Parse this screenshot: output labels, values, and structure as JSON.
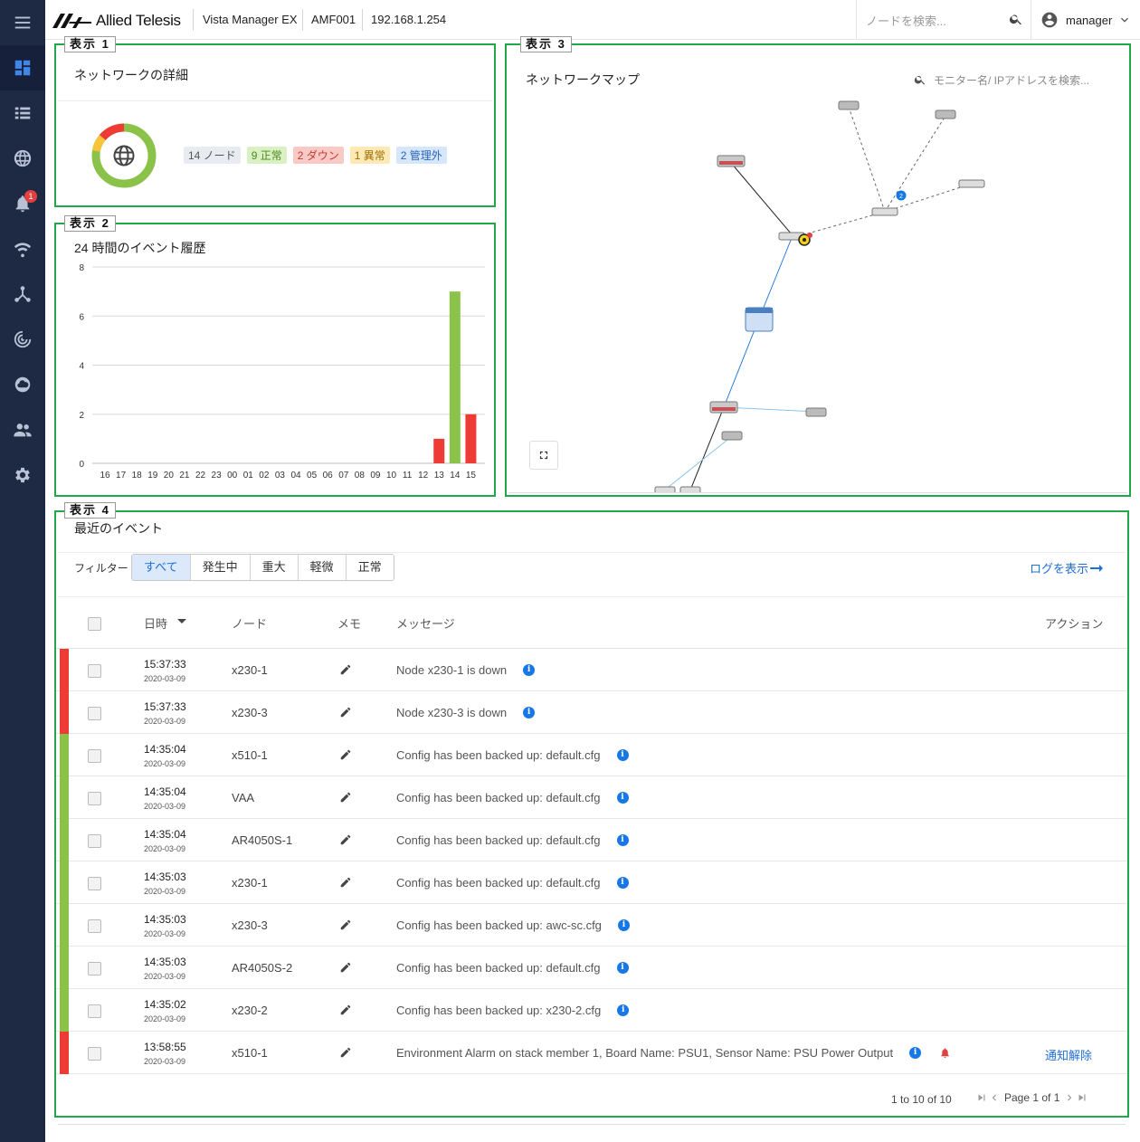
{
  "header": {
    "brand": "Allied Telesis",
    "product": "Vista Manager EX",
    "device": "AMF001",
    "ip": "192.168.1.254",
    "search_placeholder": "ノードを検索...",
    "user": "manager"
  },
  "sidebar": {
    "items": [
      {
        "icon": "menu-icon"
      },
      {
        "icon": "dashboard-icon",
        "active": true
      },
      {
        "icon": "list-icon"
      },
      {
        "icon": "globe-icon"
      },
      {
        "icon": "bell-icon",
        "badge": "1"
      },
      {
        "icon": "wifi-icon"
      },
      {
        "icon": "topology-icon"
      },
      {
        "icon": "radar-icon"
      },
      {
        "icon": "cloud-icon"
      },
      {
        "icon": "users-icon"
      },
      {
        "icon": "gear-icon"
      }
    ]
  },
  "panel1": {
    "label": "表示 1",
    "title": "ネットワークの詳細",
    "chips": [
      {
        "text": "14 ノード",
        "bg": "#e8ecf2",
        "fg": "#555"
      },
      {
        "text": "9 正常",
        "bg": "#d9efc4",
        "fg": "#4d8a1e"
      },
      {
        "text": "2 ダウン",
        "bg": "#f9c9c6",
        "fg": "#c23a31"
      },
      {
        "text": "1 異常",
        "bg": "#fde9b4",
        "fg": "#a06d00"
      },
      {
        "text": "2 管理外",
        "bg": "#d6e6fb",
        "fg": "#2a64b8"
      }
    ],
    "donut": {
      "normal": 9,
      "down": 2,
      "abnormal": 1,
      "unmanaged": 2
    }
  },
  "panel2": {
    "label": "表示 2",
    "title": "24 時間のイベント履歴",
    "chart_data": {
      "type": "bar",
      "categories": [
        "16",
        "17",
        "18",
        "19",
        "20",
        "21",
        "22",
        "23",
        "00",
        "01",
        "02",
        "03",
        "04",
        "05",
        "06",
        "07",
        "08",
        "09",
        "10",
        "11",
        "12",
        "13",
        "14",
        "15"
      ],
      "series": [
        {
          "values": [
            0,
            0,
            0,
            0,
            0,
            0,
            0,
            0,
            0,
            0,
            0,
            0,
            0,
            0,
            0,
            0,
            0,
            0,
            0,
            0,
            0,
            1,
            0,
            2
          ],
          "color": "#ef3b36"
        },
        {
          "values": [
            0,
            0,
            0,
            0,
            0,
            0,
            0,
            0,
            0,
            0,
            0,
            0,
            0,
            0,
            0,
            0,
            0,
            0,
            0,
            0,
            0,
            0,
            7,
            0
          ],
          "color": "#8bc34a"
        }
      ],
      "ylim": [
        0,
        8
      ],
      "yticks": [
        "0",
        "2",
        "4",
        "6",
        "8"
      ],
      "grid": true
    }
  },
  "panel3": {
    "label": "表示 3",
    "title": "ネットワークマップ",
    "search_placeholder": "モニター名/ IPアドレスを検索...",
    "node_badge": "2"
  },
  "panel4": {
    "label": "表示 4",
    "title": "最近のイベント",
    "filter_label": "フィルター",
    "filters": [
      "すべて",
      "発生中",
      "重大",
      "軽微",
      "正常"
    ],
    "log_link": "ログを表示",
    "columns": {
      "datetime": "日時",
      "node": "ノード",
      "memo": "メモ",
      "message": "メッセージ",
      "action": "アクション"
    },
    "rows": [
      {
        "sev": "#ef3b36",
        "time": "15:37:33",
        "date": "2020-03-09",
        "node": "x230-1",
        "msg": "Node x230-1 is down",
        "action": ""
      },
      {
        "sev": "#ef3b36",
        "time": "15:37:33",
        "date": "2020-03-09",
        "node": "x230-3",
        "msg": "Node x230-3 is down",
        "action": ""
      },
      {
        "sev": "#8bc34a",
        "time": "14:35:04",
        "date": "2020-03-09",
        "node": "x510-1",
        "msg": "Config has been backed up: default.cfg",
        "action": ""
      },
      {
        "sev": "#8bc34a",
        "time": "14:35:04",
        "date": "2020-03-09",
        "node": "VAA",
        "msg": "Config has been backed up: default.cfg",
        "action": ""
      },
      {
        "sev": "#8bc34a",
        "time": "14:35:04",
        "date": "2020-03-09",
        "node": "AR4050S-1",
        "msg": "Config has been backed up: default.cfg",
        "action": ""
      },
      {
        "sev": "#8bc34a",
        "time": "14:35:03",
        "date": "2020-03-09",
        "node": "x230-1",
        "msg": "Config has been backed up: default.cfg",
        "action": ""
      },
      {
        "sev": "#8bc34a",
        "time": "14:35:03",
        "date": "2020-03-09",
        "node": "x230-3",
        "msg": "Config has been backed up: awc-sc.cfg",
        "action": ""
      },
      {
        "sev": "#8bc34a",
        "time": "14:35:03",
        "date": "2020-03-09",
        "node": "AR4050S-2",
        "msg": "Config has been backed up: default.cfg",
        "action": ""
      },
      {
        "sev": "#8bc34a",
        "time": "14:35:02",
        "date": "2020-03-09",
        "node": "x230-2",
        "msg": "Config has been backed up: x230-2.cfg",
        "action": ""
      },
      {
        "sev": "#ef3b36",
        "time": "13:58:55",
        "date": "2020-03-09",
        "node": "x510-1",
        "msg": "Environment Alarm on stack member 1, Board Name: PSU1, Sensor Name: PSU Power Output",
        "action": "通知解除",
        "alarm": true
      }
    ],
    "footer": {
      "count": "1 to 10 of 10",
      "page": "Page 1 of 1"
    }
  }
}
